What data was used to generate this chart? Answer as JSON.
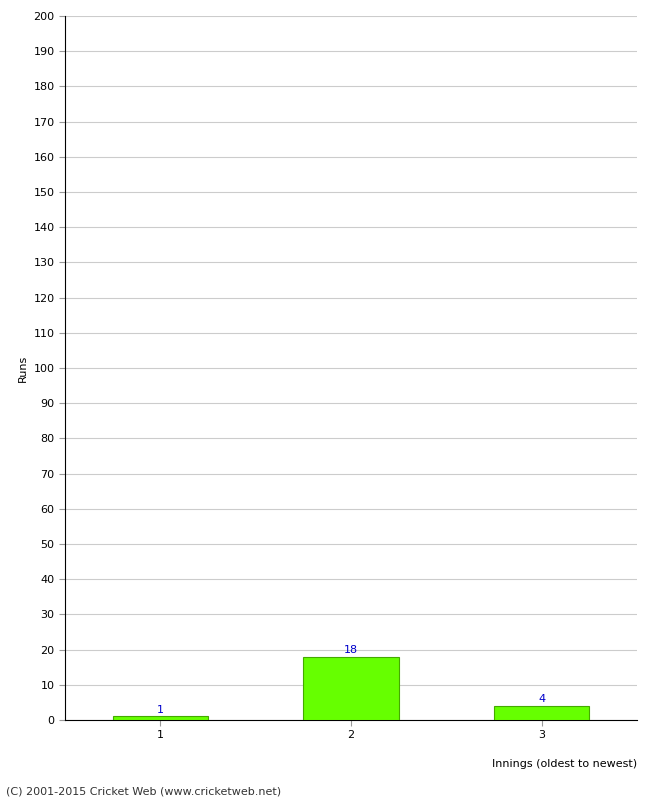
{
  "categories": [
    "1",
    "2",
    "3"
  ],
  "values": [
    1,
    18,
    4
  ],
  "bar_color": "#66ff00",
  "bar_edge_color": "#44aa00",
  "value_label_color": "#0000cc",
  "value_labels": [
    "1",
    "18",
    "4"
  ],
  "ylabel": "Runs",
  "xlabel": "Innings (oldest to newest)",
  "ylim": [
    0,
    200
  ],
  "yticks": [
    0,
    10,
    20,
    30,
    40,
    50,
    60,
    70,
    80,
    90,
    100,
    110,
    120,
    130,
    140,
    150,
    160,
    170,
    180,
    190,
    200
  ],
  "footer": "(C) 2001-2015 Cricket Web (www.cricketweb.net)",
  "background_color": "#ffffff",
  "grid_color": "#cccccc",
  "bar_width": 0.5,
  "value_label_fontsize": 8,
  "axis_label_fontsize": 8,
  "tick_fontsize": 8,
  "footer_fontsize": 8
}
